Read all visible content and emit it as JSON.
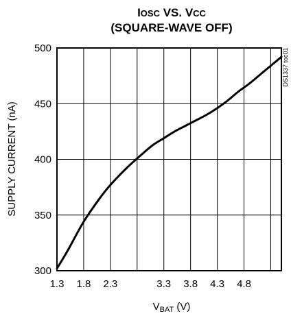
{
  "chart_data": {
    "type": "line",
    "title_line1_main": "I",
    "title_line1_sub": "OSC",
    "title_line1_mid": " VS. V",
    "title_line1_sub2": "CC",
    "title_line2": "(SQUARE-WAVE OFF)",
    "xlabel_main": "V",
    "xlabel_sub": "BAT",
    "xlabel_unit": " (V)",
    "ylabel": "SUPPLY CURRENT (nA)",
    "doc_code": "DS1337 toc01",
    "xlim": [
      1.3,
      5.5
    ],
    "ylim": [
      300,
      500
    ],
    "x_ticks": [
      1.3,
      1.8,
      2.3,
      2.8,
      3.3,
      3.8,
      4.3,
      4.8,
      5.3
    ],
    "x_tick_labels": [
      "1.3",
      "1.8",
      "2.3",
      "",
      "3.3",
      "3.8",
      "4.3",
      "4.8",
      ""
    ],
    "y_ticks": [
      300,
      350,
      400,
      450,
      500
    ],
    "y_tick_labels": [
      "300",
      "350",
      "400",
      "450",
      "500"
    ],
    "grid": true,
    "series": [
      {
        "x": [
          1.3,
          1.5,
          1.8,
          2.1,
          2.3,
          2.6,
          2.9,
          3.1,
          3.3,
          3.5,
          3.7,
          3.9,
          4.1,
          4.3,
          4.5,
          4.7,
          4.9,
          5.1,
          5.3,
          5.5
        ],
        "values": [
          302,
          318,
          344,
          365,
          377,
          392,
          405,
          413,
          419,
          425,
          430,
          435,
          440,
          446,
          453,
          461,
          468,
          476,
          484,
          492
        ]
      }
    ]
  }
}
